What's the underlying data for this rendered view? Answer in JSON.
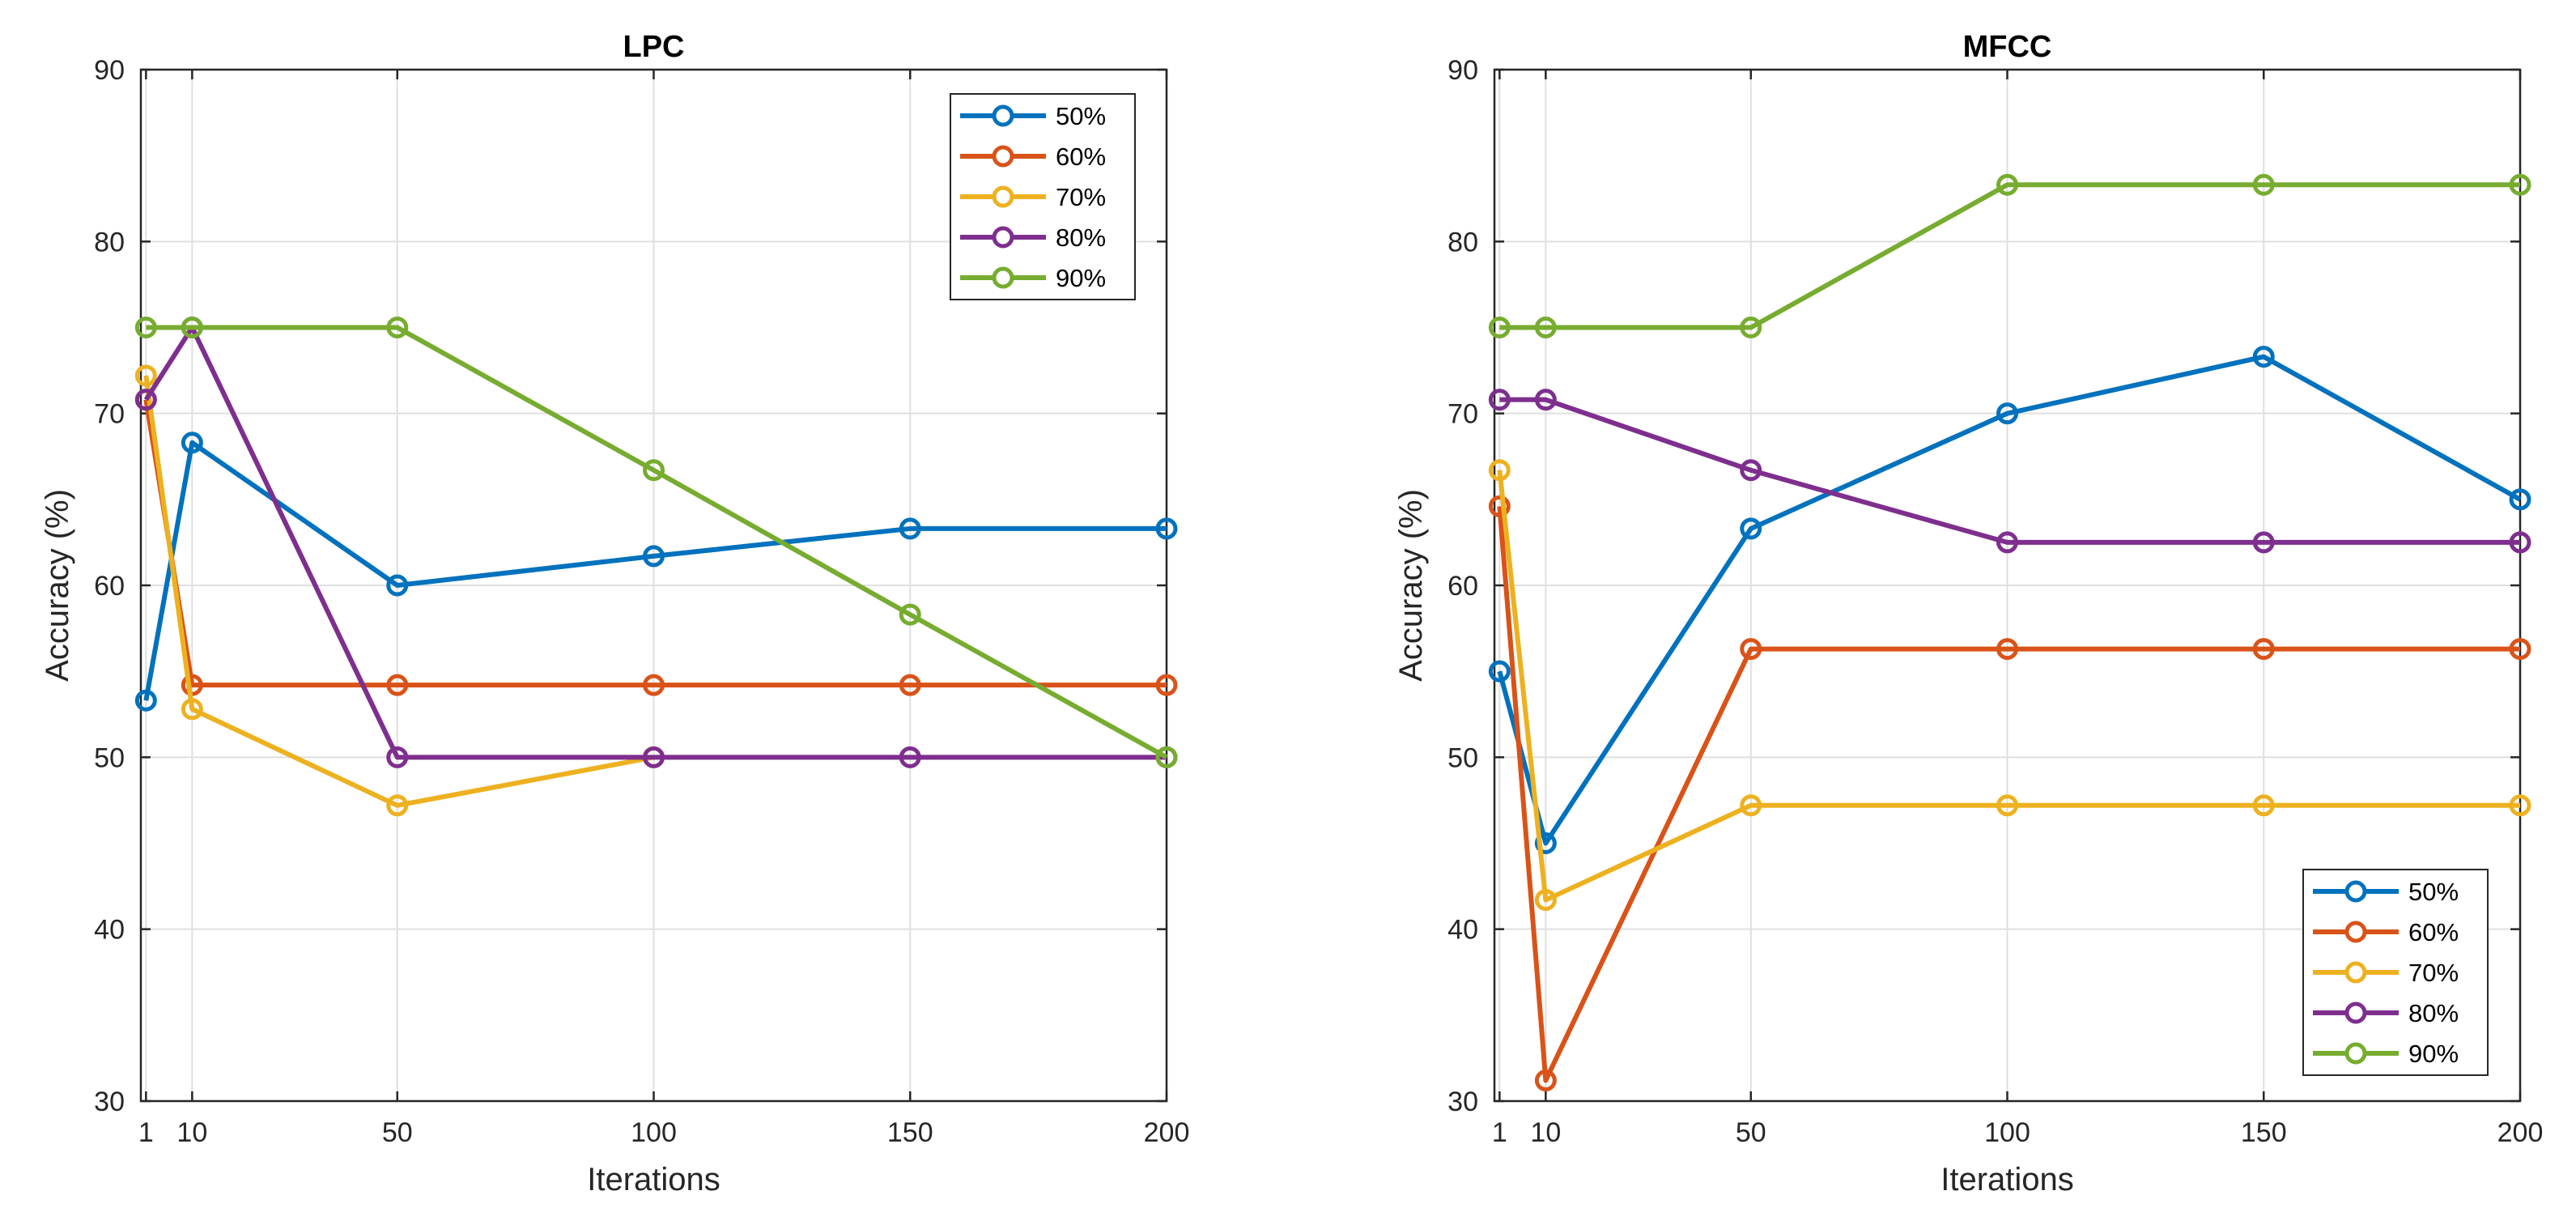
{
  "chart_data": [
    {
      "type": "line",
      "title": "LPC",
      "xlabel": "Iterations",
      "ylabel": "Accuracy (%)",
      "x": [
        1,
        10,
        50,
        100,
        150,
        200
      ],
      "xticks": [
        "1",
        "10",
        "50",
        "100",
        "150",
        "200"
      ],
      "xlim": [
        0,
        200
      ],
      "ylim": [
        30,
        90
      ],
      "yticks": [
        "30",
        "40",
        "50",
        "60",
        "70",
        "80",
        "90"
      ],
      "grid": true,
      "legend_position": "top-right",
      "series": [
        {
          "name": "50%",
          "color": "#0072BD",
          "points": [
            [
              1,
              53.3
            ],
            [
              10,
              68.3
            ],
            [
              50,
              60.0
            ],
            [
              100,
              61.7
            ],
            [
              150,
              63.3
            ],
            [
              200,
              63.3
            ]
          ]
        },
        {
          "name": "60%",
          "color": "#D95319",
          "points": [
            [
              1,
              70.8
            ],
            [
              10,
              54.2
            ],
            [
              50,
              54.2
            ],
            [
              100,
              54.2
            ],
            [
              150,
              54.2
            ],
            [
              200,
              54.2
            ]
          ]
        },
        {
          "name": "70%",
          "color": "#EDB120",
          "points": [
            [
              1,
              72.2
            ],
            [
              10,
              52.8
            ],
            [
              50,
              47.2
            ],
            [
              100,
              50.0
            ]
          ]
        },
        {
          "name": "80%",
          "color": "#7E2F8E",
          "points": [
            [
              1,
              70.8
            ],
            [
              10,
              75.0
            ],
            [
              50,
              50.0
            ],
            [
              100,
              50.0
            ],
            [
              150,
              50.0
            ],
            [
              200,
              50.0
            ]
          ]
        },
        {
          "name": "90%",
          "color": "#77AC30",
          "points": [
            [
              1,
              75.0
            ],
            [
              10,
              75.0
            ],
            [
              50,
              75.0
            ],
            [
              100,
              66.7
            ],
            [
              150,
              58.3
            ],
            [
              200,
              50.0
            ]
          ]
        }
      ]
    },
    {
      "type": "line",
      "title": "MFCC",
      "xlabel": "Iterations",
      "ylabel": "Accuracy (%)",
      "x": [
        1,
        10,
        50,
        100,
        150,
        200
      ],
      "xticks": [
        "1",
        "10",
        "50",
        "100",
        "150",
        "200"
      ],
      "xlim": [
        0,
        200
      ],
      "ylim": [
        30,
        90
      ],
      "yticks": [
        "30",
        "40",
        "50",
        "60",
        "70",
        "80",
        "90"
      ],
      "grid": true,
      "legend_position": "bottom-right",
      "series": [
        {
          "name": "50%",
          "color": "#0072BD",
          "points": [
            [
              1,
              55.0
            ],
            [
              10,
              45.0
            ],
            [
              50,
              63.3
            ],
            [
              100,
              70.0
            ],
            [
              150,
              73.3
            ],
            [
              200,
              65.0
            ]
          ]
        },
        {
          "name": "60%",
          "color": "#D95319",
          "points": [
            [
              1,
              64.6
            ],
            [
              10,
              31.2
            ],
            [
              50,
              56.3
            ],
            [
              100,
              56.3
            ],
            [
              150,
              56.3
            ],
            [
              200,
              56.3
            ]
          ]
        },
        {
          "name": "70%",
          "color": "#EDB120",
          "points": [
            [
              1,
              66.7
            ],
            [
              10,
              41.7
            ],
            [
              50,
              47.2
            ],
            [
              100,
              47.2
            ],
            [
              150,
              47.2
            ],
            [
              200,
              47.2
            ]
          ]
        },
        {
          "name": "80%",
          "color": "#7E2F8E",
          "points": [
            [
              1,
              70.8
            ],
            [
              10,
              70.8
            ],
            [
              50,
              66.7
            ],
            [
              100,
              62.5
            ],
            [
              150,
              62.5
            ],
            [
              200,
              62.5
            ]
          ]
        },
        {
          "name": "90%",
          "color": "#77AC30",
          "points": [
            [
              1,
              75.0
            ],
            [
              10,
              75.0
            ],
            [
              50,
              75.0
            ],
            [
              100,
              83.3
            ],
            [
              150,
              83.3
            ],
            [
              200,
              83.3
            ]
          ]
        }
      ]
    }
  ]
}
